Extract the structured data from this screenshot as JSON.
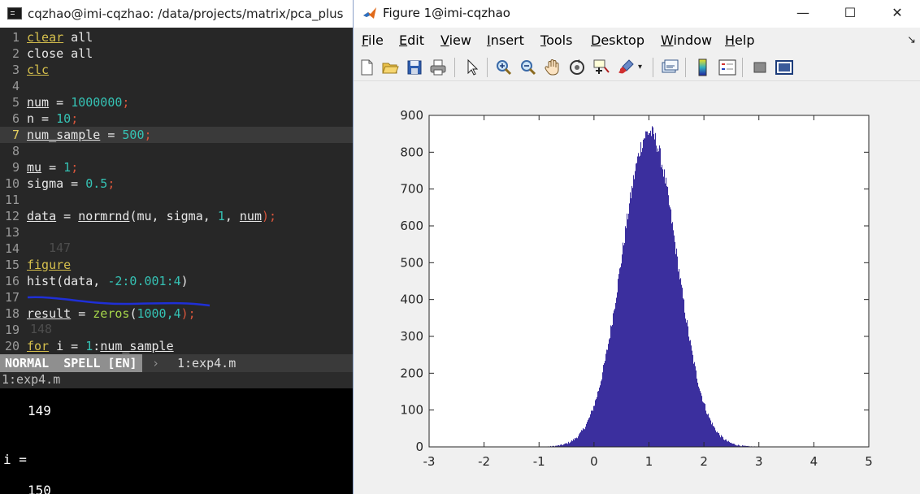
{
  "terminal": {
    "title": "cqzhao@imi-cqzhao: /data/projects/matrix/pca_plus",
    "lines": [
      {
        "n": "1",
        "t": [
          "clear",
          " all"
        ]
      },
      {
        "n": "2",
        "t": [
          "close all"
        ]
      },
      {
        "n": "3",
        "t": [
          "clc"
        ]
      },
      {
        "n": "4",
        "t": [
          ""
        ]
      },
      {
        "n": "5",
        "t": [
          "num",
          " = ",
          "1000000",
          ";"
        ]
      },
      {
        "n": "6",
        "t": [
          "n = ",
          "10",
          ";"
        ]
      },
      {
        "n": "7",
        "t": [
          "num_sample",
          " = ",
          "500",
          ";"
        ]
      },
      {
        "n": "8",
        "t": [
          ""
        ]
      },
      {
        "n": "9",
        "t": [
          "mu",
          " = ",
          "1",
          ";"
        ]
      },
      {
        "n": "10",
        "t": [
          "sigma = ",
          "0.5",
          ";"
        ]
      },
      {
        "n": "11",
        "t": [
          ""
        ]
      },
      {
        "n": "12",
        "t": [
          "data",
          " = ",
          "normrnd",
          "(mu, sigma, ",
          "1",
          ", ",
          "num",
          ");"
        ]
      },
      {
        "n": "13",
        "t": [
          ""
        ]
      },
      {
        "n": "14",
        "t": [
          ""
        ]
      },
      {
        "n": "15",
        "t": [
          "figure"
        ]
      },
      {
        "n": "16",
        "t": [
          "hist(data, ",
          "-2:0.001:4",
          ")"
        ]
      },
      {
        "n": "17",
        "t": [
          ""
        ]
      },
      {
        "n": "18",
        "t": [
          "result",
          " = ",
          "zeros",
          "(",
          "1000,4",
          ");"
        ]
      },
      {
        "n": "19",
        "t": [
          ""
        ]
      },
      {
        "n": "20",
        "t": [
          "for",
          " i = ",
          "1",
          ":",
          "num_sample"
        ]
      }
    ],
    "ghost_text": [
      "147",
      "148"
    ],
    "status": {
      "mode": "NORMAL  SPELL [EN]",
      "separator": "›",
      "buffer": "1:exp4.m"
    },
    "cmdline": "1:exp4.m",
    "console": [
      "149",
      "i =",
      "150"
    ]
  },
  "figure": {
    "title": "Figure 1@imi-cqzhao",
    "window_buttons": [
      "—",
      "☐",
      "✕"
    ],
    "menus": [
      {
        "first": "F",
        "rest": "ile"
      },
      {
        "first": "E",
        "rest": "dit"
      },
      {
        "first": "V",
        "rest": "iew"
      },
      {
        "first": "I",
        "rest": "nsert"
      },
      {
        "first": "T",
        "rest": "ools"
      },
      {
        "first": "D",
        "rest": "esktop"
      },
      {
        "first": "W",
        "rest": "indow"
      },
      {
        "first": "H",
        "rest": "elp"
      }
    ],
    "menu_arrow": "↘",
    "toolbar_icons": [
      "new-figure-icon",
      "open-file-icon",
      "save-icon",
      "print-icon",
      "edit-plot-arrow-icon",
      "zoom-in-icon",
      "zoom-out-icon",
      "pan-hand-icon",
      "rotate-3d-icon",
      "data-cursor-icon",
      "brush-icon",
      "brush-dropdown-icon",
      "link-plot-icon",
      "colorbar-icon",
      "legend-icon",
      "hide-plot-tools-icon",
      "show-plot-tools-icon"
    ]
  },
  "chart_data": {
    "type": "bar",
    "title": "",
    "xlabel": "",
    "ylabel": "",
    "xlim": [
      -3,
      5
    ],
    "ylim": [
      0,
      900
    ],
    "xticks": [
      "-3",
      "-2",
      "-1",
      "0",
      "1",
      "2",
      "3",
      "4",
      "5"
    ],
    "yticks": [
      "0",
      "100",
      "200",
      "300",
      "400",
      "500",
      "600",
      "700",
      "800",
      "900"
    ],
    "bar_color": "#3b2f9e",
    "distribution": {
      "kind": "normal",
      "mu": 1,
      "sigma": 0.5,
      "n": 1000000,
      "bin_width": 0.001,
      "bin_range": [
        -2,
        4
      ],
      "peak": 855
    }
  }
}
